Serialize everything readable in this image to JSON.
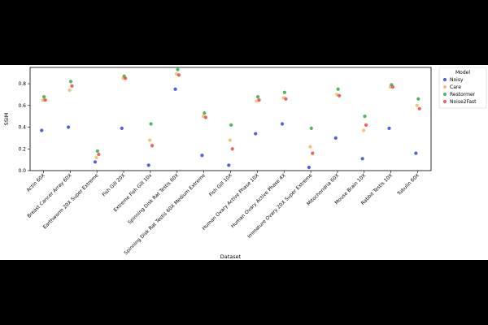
{
  "chart_data": {
    "type": "scatter",
    "title": "",
    "xlabel": "Dataset",
    "ylabel": "SSIM",
    "ylim": [
      0,
      0.95
    ],
    "yticks": [
      0.0,
      0.2,
      0.4,
      0.6,
      0.8
    ],
    "ytick_labels": [
      "0.0",
      "0.2",
      "0.4",
      "0.6",
      "0.8"
    ],
    "grid": false,
    "legend": {
      "title": "Model",
      "placement": "outside-right"
    },
    "categories": [
      "Actin 60X",
      "Breast Cancer Array 60X",
      "Earthworm 20X Super Extreme",
      "Fish Gill 20X",
      "Extreme Fish Gill 10x",
      "Spinning Disk Rat Testis 60X",
      "Spinning Disk Rat Testis 60X Medium Extreme",
      "Fish Gill 10X",
      "Human Ovary Active Phase 10X",
      "Human Ovary Active Phase 4X",
      "Immature Ovary 20X Super Extreme",
      "Mitochondria 60X",
      "Mouse Brain 10X",
      "Rabbit Testis 10X",
      "Tubulin 60X"
    ],
    "series": [
      {
        "name": "Noisy",
        "color": "#3344dd",
        "values": [
          0.37,
          0.4,
          0.08,
          0.39,
          0.05,
          0.75,
          0.14,
          0.05,
          0.34,
          0.43,
          0.03,
          0.3,
          0.11,
          0.39,
          0.16
        ]
      },
      {
        "name": "Care",
        "color": "#f5b95a",
        "values": [
          0.65,
          0.74,
          0.12,
          0.85,
          0.28,
          0.89,
          0.5,
          0.28,
          0.64,
          0.67,
          0.22,
          0.7,
          0.37,
          0.77,
          0.6
        ]
      },
      {
        "name": "Restormer",
        "color": "#33aa44",
        "values": [
          0.68,
          0.82,
          0.18,
          0.87,
          0.43,
          0.93,
          0.53,
          0.42,
          0.68,
          0.72,
          0.39,
          0.75,
          0.5,
          0.79,
          0.66
        ]
      },
      {
        "name": "Noise2Fast",
        "color": "#ee4444",
        "values": [
          0.65,
          0.78,
          0.15,
          0.85,
          0.23,
          0.88,
          0.49,
          0.2,
          0.65,
          0.66,
          0.16,
          0.69,
          0.42,
          0.77,
          0.57
        ]
      }
    ]
  }
}
